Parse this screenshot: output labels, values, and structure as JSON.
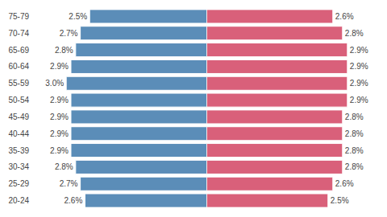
{
  "chart_data": {
    "type": "bar",
    "orientation": "horizontal",
    "categories": [
      "75-79",
      "70-74",
      "65-69",
      "60-64",
      "55-59",
      "50-54",
      "45-49",
      "40-44",
      "35-39",
      "30-34",
      "25-29",
      "20-24"
    ],
    "series": [
      {
        "color": "#5b8db8",
        "values": [
          2.5,
          2.7,
          2.8,
          2.9,
          3.0,
          2.9,
          2.9,
          2.9,
          2.9,
          2.8,
          2.7,
          2.6
        ],
        "value_labels": [
          "2.5%",
          "2.7%",
          "2.8%",
          "2.9%",
          "3.0%",
          "2.9%",
          "2.9%",
          "2.9%",
          "2.9%",
          "2.8%",
          "2.7%",
          "2.6%"
        ]
      },
      {
        "color": "#d9607a",
        "values": [
          2.6,
          2.8,
          2.9,
          2.9,
          2.9,
          2.9,
          2.8,
          2.8,
          2.8,
          2.8,
          2.6,
          2.5
        ],
        "value_labels": [
          "2.6%",
          "2.8%",
          "2.9%",
          "2.9%",
          "2.9%",
          "2.9%",
          "2.8%",
          "2.8%",
          "2.8%",
          "2.8%",
          "2.6%",
          "2.5%"
        ]
      }
    ],
    "data_labels": true,
    "tick_labels": "y",
    "grid": false
  }
}
